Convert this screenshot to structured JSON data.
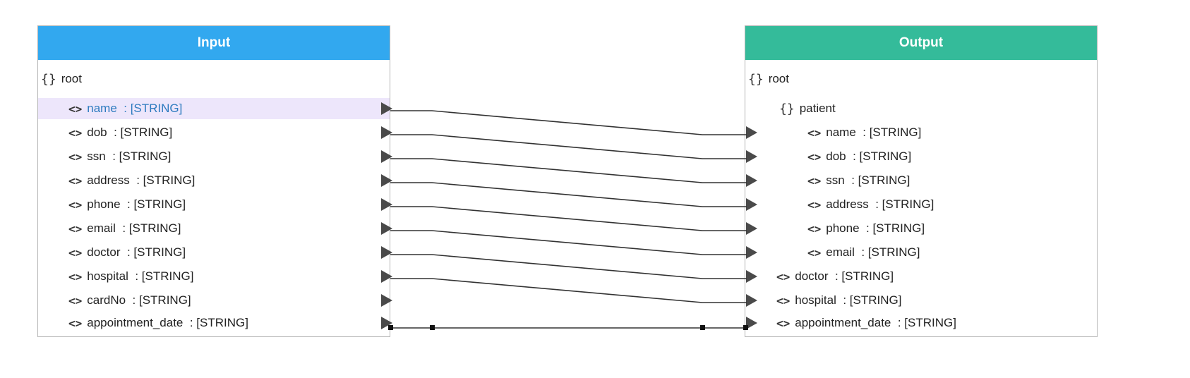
{
  "input": {
    "title": "Input",
    "root_label": "root",
    "fields": [
      {
        "name": "name",
        "type": ": [STRING]"
      },
      {
        "name": "dob",
        "type": ": [STRING]"
      },
      {
        "name": "ssn",
        "type": ": [STRING]"
      },
      {
        "name": "address",
        "type": ": [STRING]"
      },
      {
        "name": "phone",
        "type": ": [STRING]"
      },
      {
        "name": "email",
        "type": ": [STRING]"
      },
      {
        "name": "doctor",
        "type": ": [STRING]"
      },
      {
        "name": "hospital",
        "type": ": [STRING]"
      },
      {
        "name": "cardNo",
        "type": ": [STRING]"
      },
      {
        "name": "appointment_date",
        "type": ": [STRING]"
      }
    ]
  },
  "output": {
    "title": "Output",
    "root_label": "root",
    "patient_label": "patient",
    "patient_fields": [
      {
        "name": "name",
        "type": ": [STRING]"
      },
      {
        "name": "dob",
        "type": ": [STRING]"
      },
      {
        "name": "ssn",
        "type": ": [STRING]"
      },
      {
        "name": "address",
        "type": ": [STRING]"
      },
      {
        "name": "phone",
        "type": ": [STRING]"
      },
      {
        "name": "email",
        "type": ": [STRING]"
      }
    ],
    "fields": [
      {
        "name": "doctor",
        "type": ": [STRING]"
      },
      {
        "name": "hospital",
        "type": ": [STRING]"
      },
      {
        "name": "appointment_date",
        "type": ": [STRING]"
      }
    ]
  },
  "symbols": {
    "object": "{}",
    "primitive": "<>"
  },
  "colors": {
    "input_header": "#32a8ef",
    "output_header": "#34bb9a",
    "selected_row": "#ede6fb",
    "selected_text": "#2d7bbf",
    "link": "#333333"
  },
  "mappings": [
    {
      "from": "name",
      "to": "patient.name"
    },
    {
      "from": "dob",
      "to": "patient.dob"
    },
    {
      "from": "ssn",
      "to": "patient.ssn"
    },
    {
      "from": "address",
      "to": "patient.address"
    },
    {
      "from": "phone",
      "to": "patient.phone"
    },
    {
      "from": "email",
      "to": "patient.email"
    },
    {
      "from": "doctor",
      "to": "doctor"
    },
    {
      "from": "hospital",
      "to": "hospital"
    },
    {
      "from": "appointment_date",
      "to": "appointment_date",
      "selected": true
    }
  ]
}
